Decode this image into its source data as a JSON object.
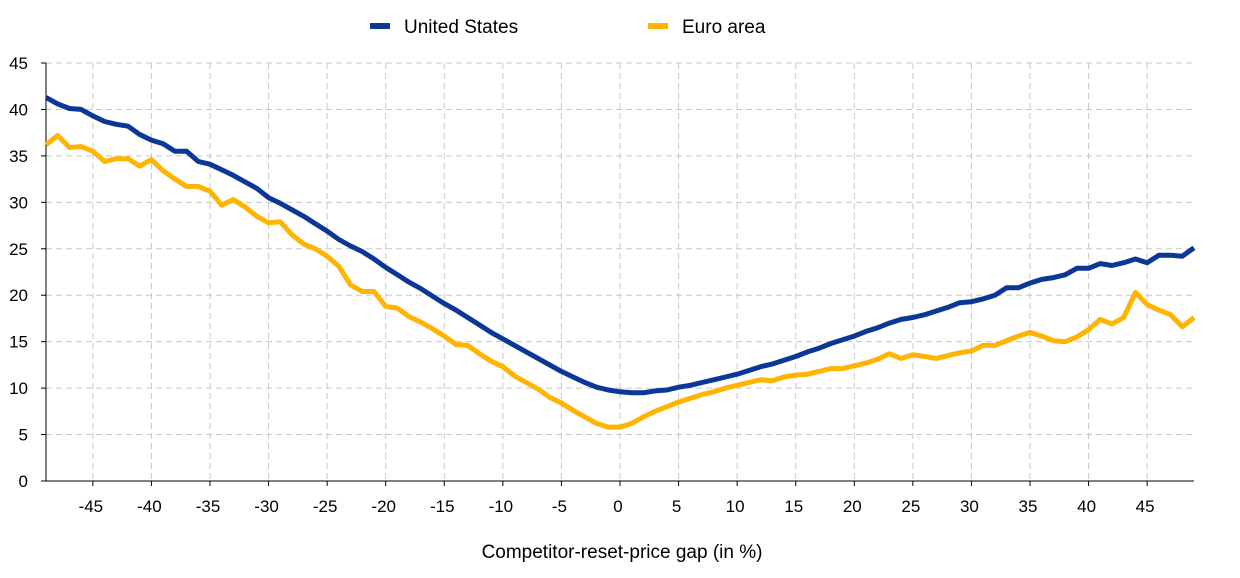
{
  "chart_data": {
    "type": "line",
    "xlabel": "Competitor-reset-price gap (in %)",
    "ylabel": "",
    "xlim": [
      -49,
      49
    ],
    "ylim": [
      0,
      45
    ],
    "xticks": [
      -45,
      -40,
      -35,
      -30,
      -25,
      -20,
      -15,
      -10,
      -5,
      0,
      5,
      10,
      15,
      20,
      25,
      30,
      35,
      40,
      45
    ],
    "yticks": [
      0,
      5,
      10,
      15,
      20,
      25,
      30,
      35,
      40,
      45
    ],
    "grid": true,
    "legend_position": "top",
    "series": [
      {
        "name": "United States",
        "color": "#0b3797",
        "x": [
          -49,
          -48,
          -47,
          -46,
          -45,
          -44,
          -43,
          -42,
          -41,
          -40,
          -39,
          -38,
          -37,
          -36,
          -35,
          -34,
          -33,
          -32,
          -31,
          -30,
          -29,
          -28,
          -27,
          -26,
          -25,
          -24,
          -23,
          -22,
          -21,
          -20,
          -19,
          -18,
          -17,
          -16,
          -15,
          -14,
          -13,
          -12,
          -11,
          -10,
          -9,
          -8,
          -7,
          -6,
          -5,
          -4,
          -3,
          -2,
          -1,
          0,
          1,
          2,
          3,
          4,
          5,
          6,
          7,
          8,
          9,
          10,
          11,
          12,
          13,
          14,
          15,
          16,
          17,
          18,
          19,
          20,
          21,
          22,
          23,
          24,
          25,
          26,
          27,
          28,
          29,
          30,
          31,
          32,
          33,
          34,
          35,
          36,
          37,
          38,
          39,
          40,
          41,
          42,
          43,
          44,
          45,
          46,
          47,
          48,
          49
        ],
        "y": [
          41.3,
          40.6,
          40.1,
          40.0,
          39.3,
          38.7,
          38.4,
          38.2,
          37.3,
          36.7,
          36.3,
          35.5,
          35.5,
          34.4,
          34.1,
          33.5,
          32.9,
          32.2,
          31.5,
          30.5,
          29.9,
          29.2,
          28.5,
          27.7,
          26.9,
          26.0,
          25.3,
          24.7,
          23.9,
          23.0,
          22.2,
          21.4,
          20.7,
          19.9,
          19.1,
          18.4,
          17.6,
          16.8,
          16.0,
          15.3,
          14.6,
          13.9,
          13.2,
          12.5,
          11.8,
          11.2,
          10.6,
          10.1,
          9.8,
          9.6,
          9.5,
          9.5,
          9.7,
          9.8,
          10.1,
          10.3,
          10.6,
          10.9,
          11.2,
          11.5,
          11.9,
          12.3,
          12.6,
          13.0,
          13.4,
          13.9,
          14.3,
          14.8,
          15.2,
          15.6,
          16.1,
          16.5,
          17.0,
          17.4,
          17.6,
          17.9,
          18.3,
          18.7,
          19.2,
          19.3,
          19.6,
          20.0,
          20.8,
          20.8,
          21.3,
          21.7,
          21.9,
          22.2,
          22.9,
          22.9,
          23.4,
          23.2,
          23.5,
          23.9,
          23.5,
          24.3,
          24.3,
          24.2,
          25.1
        ]
      },
      {
        "name": "Euro area",
        "color": "#ffb400",
        "x": [
          -49,
          -48,
          -47,
          -46,
          -45,
          -44,
          -43,
          -42,
          -41,
          -40,
          -39,
          -38,
          -37,
          -36,
          -35,
          -34,
          -33,
          -32,
          -31,
          -30,
          -29,
          -28,
          -27,
          -26,
          -25,
          -24,
          -23,
          -22,
          -21,
          -20,
          -19,
          -18,
          -17,
          -16,
          -15,
          -14,
          -13,
          -12,
          -11,
          -10,
          -9,
          -8,
          -7,
          -6,
          -5,
          -4,
          -3,
          -2,
          -1,
          0,
          1,
          2,
          3,
          4,
          5,
          6,
          7,
          8,
          9,
          10,
          11,
          12,
          13,
          14,
          15,
          16,
          17,
          18,
          19,
          20,
          21,
          22,
          23,
          24,
          25,
          26,
          27,
          28,
          29,
          30,
          31,
          32,
          33,
          34,
          35,
          36,
          37,
          38,
          39,
          40,
          41,
          42,
          43,
          44,
          45,
          46,
          47,
          48,
          49
        ],
        "y": [
          36.2,
          37.2,
          35.9,
          36.0,
          35.5,
          34.4,
          34.7,
          34.7,
          33.9,
          34.6,
          33.4,
          32.5,
          31.7,
          31.7,
          31.2,
          29.7,
          30.3,
          29.5,
          28.5,
          27.8,
          27.9,
          26.5,
          25.5,
          25.0,
          24.2,
          23.1,
          21.1,
          20.4,
          20.4,
          18.8,
          18.6,
          17.7,
          17.1,
          16.4,
          15.6,
          14.7,
          14.6,
          13.7,
          12.9,
          12.3,
          11.3,
          10.6,
          9.9,
          9.0,
          8.4,
          7.6,
          6.9,
          6.2,
          5.8,
          5.8,
          6.2,
          6.9,
          7.5,
          8.0,
          8.5,
          8.9,
          9.3,
          9.6,
          10.0,
          10.3,
          10.6,
          10.9,
          10.8,
          11.2,
          11.4,
          11.5,
          11.8,
          12.1,
          12.1,
          12.4,
          12.7,
          13.1,
          13.7,
          13.2,
          13.6,
          13.4,
          13.2,
          13.5,
          13.8,
          14.0,
          14.6,
          14.6,
          15.1,
          15.6,
          16.0,
          15.6,
          15.1,
          15.0,
          15.5,
          16.3,
          17.4,
          16.9,
          17.6,
          20.3,
          19.0,
          18.4,
          17.9,
          16.6,
          17.6
        ]
      }
    ]
  }
}
